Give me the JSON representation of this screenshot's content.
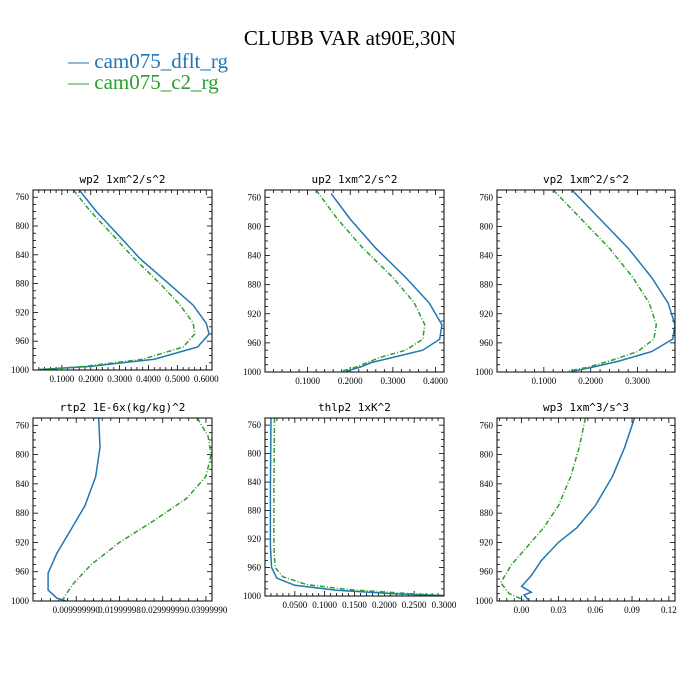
{
  "title": "CLUBB VAR at90E,30N",
  "legend": [
    {
      "label": "cam075_dflt_rg",
      "color": "#1f77b4",
      "dash": "solid"
    },
    {
      "label": "cam075_c2_rg",
      "color": "#2ca02c",
      "dash": "dashdot"
    }
  ],
  "chart_data": [
    {
      "type": "line",
      "title": "wp2   1xm^2/s^2",
      "xlim": [
        0,
        0.62
      ],
      "ylim": [
        1000,
        750
      ],
      "xticks": [
        "0.1000",
        "0.2000",
        "0.3000",
        "0.4000",
        "0.5000",
        "0.6000"
      ],
      "xtick_values": [
        0.1,
        0.2,
        0.3,
        0.4,
        0.5,
        0.6
      ],
      "yticks": [
        760,
        800,
        840,
        880,
        920,
        960,
        1000
      ],
      "series": [
        {
          "name": "cam075_dflt_rg",
          "points": [
            [
              0.16,
              750
            ],
            [
              0.22,
              780
            ],
            [
              0.29,
              810
            ],
            [
              0.37,
              845
            ],
            [
              0.47,
              880
            ],
            [
              0.555,
              910
            ],
            [
              0.6,
              935
            ],
            [
              0.61,
              950
            ],
            [
              0.57,
              968
            ],
            [
              0.42,
              985
            ],
            [
              0.2,
              995
            ],
            [
              0.02,
              999.5
            ]
          ]
        },
        {
          "name": "cam075_c2_rg",
          "points": [
            [
              0.14,
              750
            ],
            [
              0.2,
              780
            ],
            [
              0.27,
              810
            ],
            [
              0.35,
              845
            ],
            [
              0.44,
              880
            ],
            [
              0.51,
              910
            ],
            [
              0.555,
              935
            ],
            [
              0.56,
              950
            ],
            [
              0.52,
              968
            ],
            [
              0.38,
              985
            ],
            [
              0.18,
              995
            ],
            [
              0.02,
              999.5
            ]
          ]
        }
      ]
    },
    {
      "type": "line",
      "title": "up2   1xm^2/s^2",
      "xlim": [
        0,
        0.42
      ],
      "ylim": [
        1000,
        750
      ],
      "xticks": [
        "0.1000",
        "0.2000",
        "0.3000",
        "0.4000"
      ],
      "xtick_values": [
        0.1,
        0.2,
        0.3,
        0.4
      ],
      "yticks": [
        760,
        800,
        840,
        880,
        920,
        960,
        1000
      ],
      "series": [
        {
          "name": "cam075_dflt_rg",
          "points": [
            [
              0.155,
              755
            ],
            [
              0.2,
              790
            ],
            [
              0.26,
              830
            ],
            [
              0.33,
              870
            ],
            [
              0.385,
              905
            ],
            [
              0.415,
              935
            ],
            [
              0.41,
              955
            ],
            [
              0.37,
              970
            ],
            [
              0.3,
              980
            ],
            [
              0.25,
              987
            ],
            [
              0.225,
              993
            ],
            [
              0.19,
              999
            ]
          ]
        },
        {
          "name": "cam075_c2_rg",
          "points": [
            [
              0.12,
              750
            ],
            [
              0.17,
              790
            ],
            [
              0.23,
              830
            ],
            [
              0.3,
              870
            ],
            [
              0.35,
              905
            ],
            [
              0.375,
              935
            ],
            [
              0.37,
              955
            ],
            [
              0.33,
              970
            ],
            [
              0.27,
              980
            ],
            [
              0.24,
              987
            ],
            [
              0.215,
              993
            ],
            [
              0.18,
              999
            ]
          ]
        }
      ]
    },
    {
      "type": "line",
      "title": "vp2   1xm^2/s^2",
      "xlim": [
        0,
        0.38
      ],
      "ylim": [
        1000,
        750
      ],
      "xticks": [
        "0.1000",
        "0.2000",
        "0.3000"
      ],
      "xtick_values": [
        0.1,
        0.2,
        0.3
      ],
      "yticks": [
        760,
        800,
        840,
        880,
        920,
        960,
        1000
      ],
      "series": [
        {
          "name": "cam075_dflt_rg",
          "points": [
            [
              0.16,
              750
            ],
            [
              0.22,
              790
            ],
            [
              0.28,
              830
            ],
            [
              0.33,
              870
            ],
            [
              0.365,
              905
            ],
            [
              0.38,
              935
            ],
            [
              0.375,
              955
            ],
            [
              0.33,
              972
            ],
            [
              0.26,
              985
            ],
            [
              0.2,
              994
            ],
            [
              0.16,
              999
            ]
          ]
        },
        {
          "name": "cam075_c2_rg",
          "points": [
            [
              0.12,
              750
            ],
            [
              0.18,
              790
            ],
            [
              0.24,
              830
            ],
            [
              0.29,
              870
            ],
            [
              0.325,
              905
            ],
            [
              0.34,
              935
            ],
            [
              0.335,
              955
            ],
            [
              0.3,
              972
            ],
            [
              0.24,
              985
            ],
            [
              0.19,
              994
            ],
            [
              0.15,
              999
            ]
          ]
        }
      ]
    },
    {
      "type": "line",
      "title": "rtp2   1E-6x(kg/kg)^2",
      "xlim": [
        0,
        0.0414
      ],
      "ylim": [
        1000,
        750
      ],
      "xticks": [
        "0.009999990",
        "0.01999998",
        "0.02999999",
        "0.03999990"
      ],
      "xtick_values": [
        0.01,
        0.02,
        0.03,
        0.04
      ],
      "yticks": [
        760,
        800,
        840,
        880,
        920,
        960,
        1000
      ],
      "series": [
        {
          "name": "cam075_dflt_rg",
          "points": [
            [
              0.0152,
              750
            ],
            [
              0.0155,
              790
            ],
            [
              0.0145,
              830
            ],
            [
              0.012,
              870
            ],
            [
              0.0085,
              905
            ],
            [
              0.0055,
              935
            ],
            [
              0.0035,
              962
            ],
            [
              0.0035,
              985
            ],
            [
              0.0055,
              996
            ],
            [
              0.0075,
              999.5
            ]
          ]
        },
        {
          "name": "cam075_c2_rg",
          "points": [
            [
              0.038,
              750
            ],
            [
              0.0405,
              775
            ],
            [
              0.0412,
              800
            ],
            [
              0.04,
              830
            ],
            [
              0.0355,
              860
            ],
            [
              0.028,
              890
            ],
            [
              0.02,
              920
            ],
            [
              0.0135,
              950
            ],
            [
              0.0095,
              975
            ],
            [
              0.0075,
              992
            ],
            [
              0.0068,
              999.5
            ]
          ]
        }
      ]
    },
    {
      "type": "line",
      "title": "thlp2   1xK^2",
      "xlim": [
        0,
        0.3
      ],
      "ylim": [
        1000,
        750
      ],
      "xticks": [
        "0.0500",
        "0.1000",
        "0.1500",
        "0.2000",
        "0.2500",
        "0.3000"
      ],
      "xtick_values": [
        0.05,
        0.1,
        0.15,
        0.2,
        0.25,
        0.3
      ],
      "yticks": [
        760,
        800,
        840,
        880,
        920,
        960,
        1000
      ],
      "series": [
        {
          "name": "cam075_dflt_rg",
          "points": [
            [
              0.01,
              750
            ],
            [
              0.009,
              850
            ],
            [
              0.009,
              930
            ],
            [
              0.011,
              960
            ],
            [
              0.02,
              975
            ],
            [
              0.05,
              985
            ],
            [
              0.12,
              992
            ],
            [
              0.22,
              997
            ],
            [
              0.3,
              999.5
            ]
          ]
        },
        {
          "name": "cam075_c2_rg",
          "points": [
            [
              0.016,
              750
            ],
            [
              0.015,
              850
            ],
            [
              0.015,
              930
            ],
            [
              0.017,
              960
            ],
            [
              0.03,
              973
            ],
            [
              0.07,
              984
            ],
            [
              0.14,
              991
            ],
            [
              0.24,
              996.5
            ],
            [
              0.3,
              999.5
            ]
          ]
        }
      ]
    },
    {
      "type": "line",
      "title": "wp3   1xm^3/s^3",
      "xlim": [
        -0.02,
        0.125
      ],
      "ylim": [
        1000,
        750
      ],
      "xticks": [
        "0.00",
        "0.03",
        "0.06",
        "0.09",
        "0.12"
      ],
      "xtick_values": [
        0,
        0.03,
        0.06,
        0.09,
        0.12
      ],
      "yticks": [
        760,
        800,
        840,
        880,
        920,
        960,
        1000
      ],
      "series": [
        {
          "name": "cam075_dflt_rg",
          "points": [
            [
              0.092,
              750
            ],
            [
              0.084,
              790
            ],
            [
              0.074,
              830
            ],
            [
              0.06,
              870
            ],
            [
              0.045,
              900
            ],
            [
              0.03,
              920
            ],
            [
              0.016,
              945
            ],
            [
              0.008,
              965
            ],
            [
              0.0,
              980
            ],
            [
              0.008,
              988
            ],
            [
              0.002,
              992
            ],
            [
              0.006,
              999
            ]
          ]
        },
        {
          "name": "cam075_c2_rg",
          "points": [
            [
              0.052,
              750
            ],
            [
              0.047,
              790
            ],
            [
              0.04,
              830
            ],
            [
              0.03,
              870
            ],
            [
              0.018,
              900
            ],
            [
              0.005,
              925
            ],
            [
              -0.008,
              950
            ],
            [
              -0.017,
              975
            ],
            [
              -0.01,
              990
            ],
            [
              0.003,
              999.5
            ]
          ]
        }
      ]
    }
  ]
}
